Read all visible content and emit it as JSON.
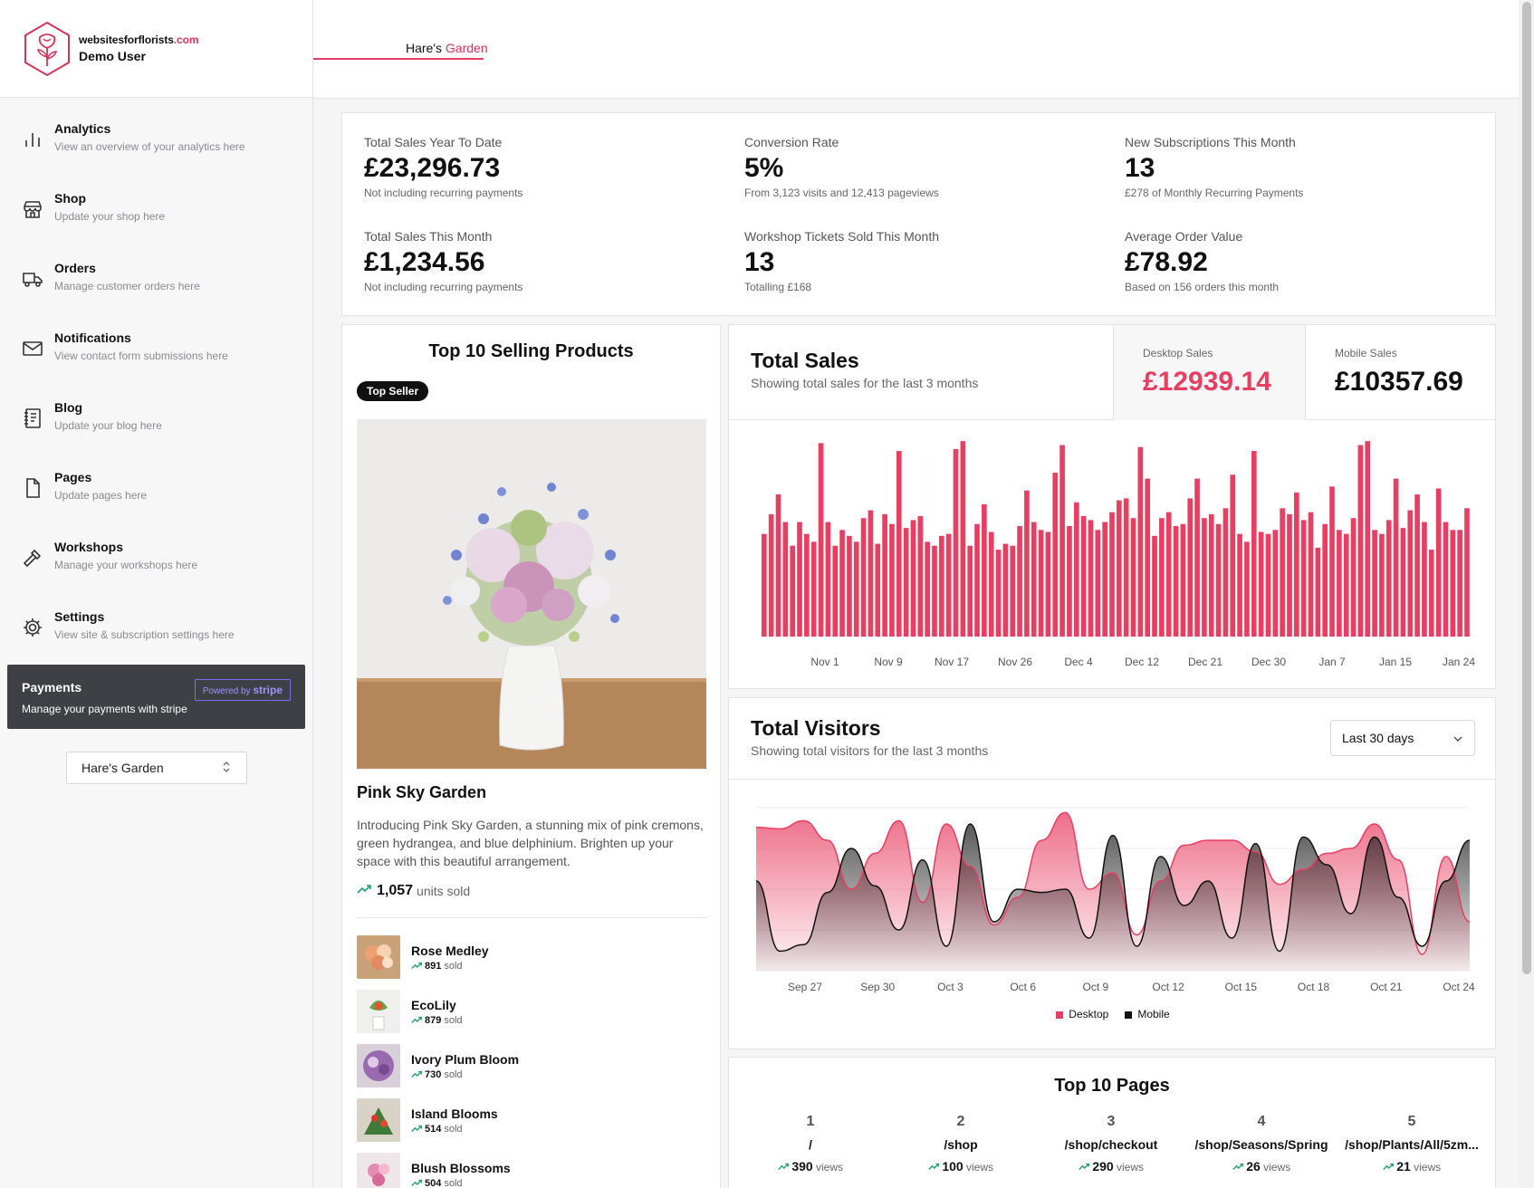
{
  "brand": {
    "site_prefix": "websitesforflorists",
    "site_suffix": ".com",
    "user": "Demo User"
  },
  "nav": [
    {
      "title": "Analytics",
      "sub": "View an overview of your analytics here",
      "icon": "bar-chart-icon"
    },
    {
      "title": "Shop",
      "sub": "Update your shop here",
      "icon": "store-icon"
    },
    {
      "title": "Orders",
      "sub": "Manage customer orders here",
      "icon": "truck-icon"
    },
    {
      "title": "Notifications",
      "sub": "View contact form submissions here",
      "icon": "mail-icon"
    },
    {
      "title": "Blog",
      "sub": "Update your blog here",
      "icon": "notebook-icon"
    },
    {
      "title": "Pages",
      "sub": "Update pages here",
      "icon": "file-icon"
    },
    {
      "title": "Workshops",
      "sub": "Manage your workshops here",
      "icon": "hammer-icon"
    },
    {
      "title": "Settings",
      "sub": "View site & subscription settings here",
      "icon": "gear-icon"
    }
  ],
  "payments": {
    "title": "Payments",
    "sub": "Manage your payments with stripe",
    "powered": "Powered by",
    "stripe": "stripe"
  },
  "store_select": {
    "value": "Hare's Garden"
  },
  "topbar": {
    "tab_prefix": "Hare's ",
    "tab_suffix": "Garden"
  },
  "stats": [
    {
      "label": "Total Sales Year To Date",
      "value": "£23,296.73",
      "note": "Not including recurring payments"
    },
    {
      "label": "Conversion Rate",
      "value": "5%",
      "note": "From 3,123 visits and 12,413 pageviews"
    },
    {
      "label": "New Subscriptions This Month",
      "value": "13",
      "note": "£278 of Monthly Recurring Payments"
    },
    {
      "label": "Total Sales This Month",
      "value": "£1,234.56",
      "note": "Not including recurring payments"
    },
    {
      "label": "Workshop Tickets Sold This Month",
      "value": "13",
      "note": "Totalling £168"
    },
    {
      "label": "Average Order Value",
      "value": "£78.92",
      "note": "Based on 156 orders this month"
    }
  ],
  "top_products": {
    "title": "Top 10 Selling Products",
    "badge": "Top Seller",
    "featured": {
      "name": "Pink Sky Garden",
      "description": "Introducing Pink Sky Garden, a stunning mix of pink cremons, green hydrangea, and blue delphinium. Brighten up your space with this beautiful arrangement.",
      "units": "1,057",
      "units_label": "units sold"
    },
    "list": [
      {
        "name": "Rose Medley",
        "sold": "891",
        "sold_label": "sold"
      },
      {
        "name": "EcoLily",
        "sold": "879",
        "sold_label": "sold"
      },
      {
        "name": "Ivory Plum Bloom",
        "sold": "730",
        "sold_label": "sold"
      },
      {
        "name": "Island Blooms",
        "sold": "514",
        "sold_label": "sold"
      },
      {
        "name": "Blush Blossoms",
        "sold": "504",
        "sold_label": "sold"
      }
    ]
  },
  "sales": {
    "title": "Total Sales",
    "subtitle": "Showing total sales for the last 3 months",
    "desktop_label": "Desktop Sales",
    "desktop_value": "£12939.14",
    "mobile_label": "Mobile Sales",
    "mobile_value": "£10357.69"
  },
  "visitors": {
    "title": "Total Visitors",
    "subtitle": "Showing total visitors for the last 3 months",
    "range": "Last 30 days",
    "legend_desktop": "Desktop",
    "legend_mobile": "Mobile"
  },
  "top_pages": {
    "title": "Top 10 Pages",
    "views_label": "views",
    "items": [
      {
        "rank": "1",
        "path": "/",
        "views": "390"
      },
      {
        "rank": "2",
        "path": "/shop",
        "views": "100"
      },
      {
        "rank": "3",
        "path": "/shop/checkout",
        "views": "290"
      },
      {
        "rank": "4",
        "path": "/shop/Seasons/Spring",
        "views": "26"
      },
      {
        "rank": "5",
        "path": "/shop/Plants/All/5zm...",
        "views": "21"
      }
    ]
  },
  "colors": {
    "accent": "#e83e62",
    "dark": "#3f3f46"
  },
  "chart_data": [
    {
      "type": "bar",
      "title": "",
      "x_tick_labels": [
        "Nov 1",
        "Nov 9",
        "Nov 17",
        "Nov 26",
        "Dec 4",
        "Dec 12",
        "Dec 21",
        "Dec 30",
        "Jan 7",
        "Jan 15",
        "Jan 24"
      ],
      "series": [
        {
          "name": "",
          "values": [
            0.52,
            0.62,
            0.72,
            0.58,
            0.46,
            0.58,
            0.52,
            0.48,
            0.98,
            0.58,
            0.46,
            0.54,
            0.51,
            0.48,
            0.6,
            0.64,
            0.47,
            0.62,
            0.57,
            0.94,
            0.55,
            0.59,
            0.61,
            0.48,
            0.46,
            0.51,
            0.52,
            0.95,
            0.99,
            0.46,
            0.57,
            0.67,
            0.53,
            0.44,
            0.47,
            0.46,
            0.56,
            0.74,
            0.58,
            0.54,
            0.53,
            0.83,
            0.97,
            0.56,
            0.68,
            0.61,
            0.59,
            0.54,
            0.58,
            0.63,
            0.69,
            0.7,
            0.6,
            0.96,
            0.8,
            0.51,
            0.6,
            0.63,
            0.56,
            0.57,
            0.7,
            0.8,
            0.6,
            0.62,
            0.57,
            0.65,
            0.82,
            0.52,
            0.48,
            0.94,
            0.53,
            0.52,
            0.54,
            0.65,
            0.62,
            0.73,
            0.59,
            0.63,
            0.45,
            0.57,
            0.76,
            0.54,
            0.52,
            0.6,
            0.97,
            0.99,
            0.54,
            0.52,
            0.59,
            0.8,
            0.55,
            0.64,
            0.72,
            0.58,
            0.44,
            0.75,
            0.58,
            0.54,
            0.54,
            0.65
          ]
        }
      ]
    },
    {
      "type": "area",
      "title": "",
      "x_tick_labels": [
        "Sep 27",
        "Sep 30",
        "Oct 3",
        "Oct 6",
        "Oct 9",
        "Oct 12",
        "Oct 15",
        "Oct 18",
        "Oct 21",
        "Oct 24"
      ],
      "series": [
        {
          "name": "Desktop",
          "values": [
            0.88,
            0.87,
            0.92,
            0.8,
            0.5,
            0.72,
            0.92,
            0.42,
            0.9,
            0.64,
            0.28,
            0.45,
            0.8,
            0.97,
            0.5,
            0.6,
            0.22,
            0.55,
            0.77,
            0.8,
            0.8,
            0.73,
            0.53,
            0.62,
            0.72,
            0.75,
            0.9,
            0.68,
            0.1,
            0.7,
            0.3
          ]
        },
        {
          "name": "Mobile",
          "values": [
            0.55,
            0.12,
            0.16,
            0.48,
            0.75,
            0.52,
            0.25,
            0.68,
            0.15,
            0.9,
            0.3,
            0.5,
            0.48,
            0.5,
            0.2,
            0.83,
            0.15,
            0.7,
            0.4,
            0.55,
            0.2,
            0.78,
            0.12,
            0.82,
            0.65,
            0.35,
            0.82,
            0.45,
            0.15,
            0.55,
            0.8
          ]
        }
      ]
    }
  ]
}
